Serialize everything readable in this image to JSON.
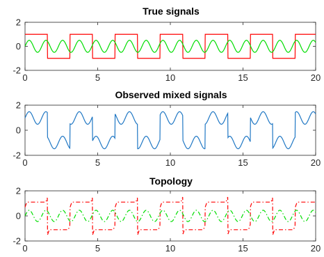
{
  "chart_data": [
    {
      "type": "line",
      "title": "True signals",
      "xlim": [
        0,
        20
      ],
      "ylim": [
        -2,
        2
      ],
      "xticks": [
        0,
        5,
        10,
        15,
        20
      ],
      "yticks": [
        -2,
        0,
        2
      ],
      "xtick_labels": [
        "0",
        "5",
        "10",
        "15",
        "20"
      ],
      "ytick_labels": [
        "-2",
        "0",
        "2"
      ],
      "series": [
        {
          "kind": "square",
          "amplitude": 1.0,
          "period": 3.1,
          "phase": 0.0,
          "color": "#ff0000",
          "style": "solid"
        },
        {
          "kind": "sine",
          "amplitude": 0.5,
          "period": 1.15,
          "phase": 0.0,
          "color": "#00dd00",
          "style": "solid"
        }
      ]
    },
    {
      "type": "line",
      "title": "Observed mixed signals",
      "xlim": [
        0,
        20
      ],
      "ylim": [
        -2,
        2
      ],
      "xticks": [
        0,
        5,
        10,
        15,
        20
      ],
      "yticks": [
        -2,
        0,
        2
      ],
      "xtick_labels": [
        "0",
        "5",
        "10",
        "15",
        "20"
      ],
      "ytick_labels": [
        "-2",
        "0",
        "2"
      ],
      "series": [
        {
          "kind": "mixed",
          "square_amplitude": 1.15,
          "sine_amplitude": 0.5,
          "period": 3.1,
          "sine_period": 1.15,
          "color": "#1f77c4",
          "style": "solid"
        }
      ]
    },
    {
      "type": "line",
      "title": "Topology",
      "xlim": [
        0,
        20
      ],
      "ylim": [
        -2,
        2
      ],
      "xticks": [
        0,
        5,
        10,
        15,
        20
      ],
      "yticks": [
        -2,
        0,
        2
      ],
      "xtick_labels": [
        "0",
        "5",
        "10",
        "15",
        "20"
      ],
      "ytick_labels": [
        "-2",
        "0",
        "2"
      ],
      "series": [
        {
          "kind": "square",
          "amplitude": 1.1,
          "period": 3.1,
          "phase": 0.0,
          "color": "#ff0000",
          "style": "dashdot",
          "spikes": true
        },
        {
          "kind": "sine",
          "amplitude": 0.45,
          "period": 1.15,
          "phase": 0.0,
          "color": "#00dd00",
          "style": "dashdot"
        }
      ]
    }
  ]
}
